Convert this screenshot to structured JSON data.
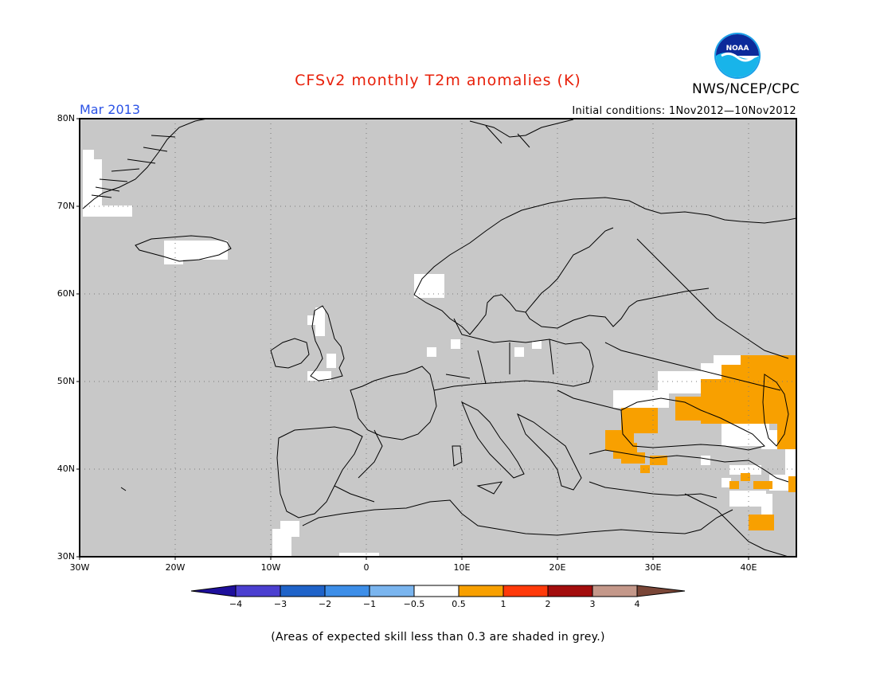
{
  "title": "CFSv2 monthly T2m anomalies (K)",
  "month": "Mar 2013",
  "initial_conditions": "Initial conditions: 1Nov2012—10Nov2012",
  "agency": "NWS/NCEP/CPC",
  "logo": {
    "name": "noaa-logo",
    "text": "NOAA"
  },
  "footnote": "(Areas of expected skill less than 0.3 are shaded in grey.)",
  "map": {
    "lat_labels": [
      "80N",
      "70N",
      "60N",
      "50N",
      "40N",
      "30N"
    ],
    "lon_labels": [
      "30W",
      "20W",
      "10W",
      "0",
      "10E",
      "20E",
      "30E",
      "40E"
    ],
    "extent": {
      "lon": [
        -30,
        45
      ],
      "lat": [
        30,
        80
      ]
    },
    "grid": true,
    "background_color": "#c8c8c8"
  },
  "colorbar": {
    "labels": [
      "−4",
      "−3",
      "−2",
      "−1",
      "−0.5",
      "0.5",
      "1",
      "2",
      "3",
      "4"
    ],
    "colors": [
      "#1e0f9c",
      "#4b3fd0",
      "#1f63c9",
      "#3d8ee8",
      "#7ab5ef",
      "#ffffff",
      "#f8a000",
      "#ff3a0a",
      "#a30d0d",
      "#c4988a",
      "#7a4637"
    ]
  }
}
